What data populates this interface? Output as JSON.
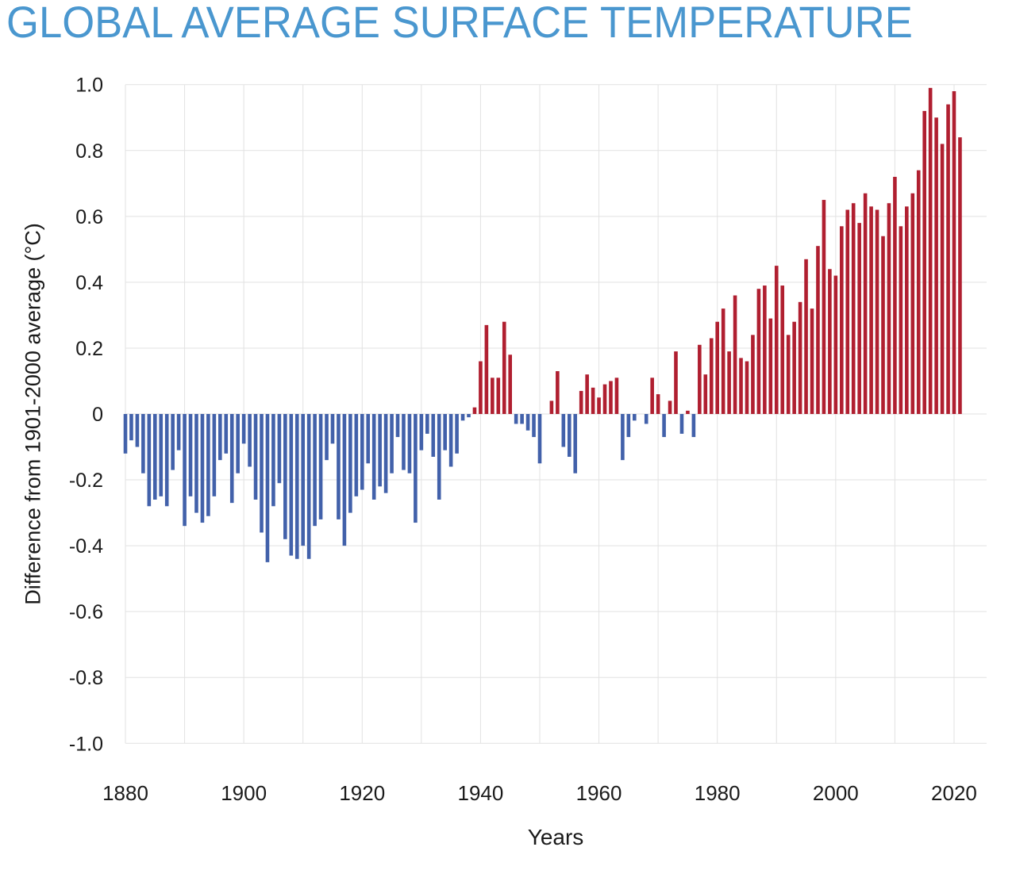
{
  "title": "GLOBAL AVERAGE SURFACE TEMPERATURE",
  "colors": {
    "title_text": "#4a97cf",
    "axis_text": "#1a1a1a",
    "gridline": "#e2e2e2",
    "bar_positive": "#b01f30",
    "bar_negative": "#4261aa",
    "background": "#ffffff"
  },
  "chart_data": {
    "type": "bar",
    "title": "GLOBAL AVERAGE SURFACE TEMPERATURE",
    "xlabel": "Years",
    "ylabel": "Difference from 1901-2000 average (°C)",
    "ylim": [
      -1.0,
      1.0
    ],
    "xlim": [
      1880,
      2025
    ],
    "grid": true,
    "legend": "none",
    "x_grid_step": 10,
    "y_tick_labels": [
      "1.0",
      "0.8",
      "0.6",
      "0.4",
      "0.2",
      "0",
      "-0.2",
      "-0.4",
      "-0.6",
      "-0.8",
      "-1.0"
    ],
    "y_tick_values": [
      1.0,
      0.8,
      0.6,
      0.4,
      0.2,
      0,
      -0.2,
      -0.4,
      -0.6,
      -0.8,
      -1.0
    ],
    "x_tick_labels": [
      "1880",
      "1900",
      "1920",
      "1940",
      "1960",
      "1980",
      "2000",
      "2020"
    ],
    "x_tick_values": [
      1880,
      1900,
      1920,
      1940,
      1960,
      1980,
      2000,
      2020
    ],
    "colors": {
      "positive": "#b01f30",
      "negative": "#4261aa",
      "grid": "#e2e2e2"
    },
    "years": [
      1880,
      1881,
      1882,
      1883,
      1884,
      1885,
      1886,
      1887,
      1888,
      1889,
      1890,
      1891,
      1892,
      1893,
      1894,
      1895,
      1896,
      1897,
      1898,
      1899,
      1900,
      1901,
      1902,
      1903,
      1904,
      1905,
      1906,
      1907,
      1908,
      1909,
      1910,
      1911,
      1912,
      1913,
      1914,
      1915,
      1916,
      1917,
      1918,
      1919,
      1920,
      1921,
      1922,
      1923,
      1924,
      1925,
      1926,
      1927,
      1928,
      1929,
      1930,
      1931,
      1932,
      1933,
      1934,
      1935,
      1936,
      1937,
      1938,
      1939,
      1940,
      1941,
      1942,
      1943,
      1944,
      1945,
      1946,
      1947,
      1948,
      1949,
      1950,
      1951,
      1952,
      1953,
      1954,
      1955,
      1956,
      1957,
      1958,
      1959,
      1960,
      1961,
      1962,
      1963,
      1964,
      1965,
      1966,
      1967,
      1968,
      1969,
      1970,
      1971,
      1972,
      1973,
      1974,
      1975,
      1976,
      1977,
      1978,
      1979,
      1980,
      1981,
      1982,
      1983,
      1984,
      1985,
      1986,
      1987,
      1988,
      1989,
      1990,
      1991,
      1992,
      1993,
      1994,
      1995,
      1996,
      1997,
      1998,
      1999,
      2000,
      2001,
      2002,
      2003,
      2004,
      2005,
      2006,
      2007,
      2008,
      2009,
      2010,
      2011,
      2012,
      2013,
      2014,
      2015,
      2016,
      2017,
      2018,
      2019,
      2020,
      2021
    ],
    "values": [
      -0.12,
      -0.08,
      -0.1,
      -0.18,
      -0.28,
      -0.26,
      -0.25,
      -0.28,
      -0.17,
      -0.11,
      -0.34,
      -0.25,
      -0.3,
      -0.33,
      -0.31,
      -0.25,
      -0.14,
      -0.12,
      -0.27,
      -0.18,
      -0.09,
      -0.16,
      -0.26,
      -0.36,
      -0.45,
      -0.28,
      -0.21,
      -0.38,
      -0.43,
      -0.44,
      -0.4,
      -0.44,
      -0.34,
      -0.32,
      -0.14,
      -0.09,
      -0.32,
      -0.4,
      -0.3,
      -0.25,
      -0.23,
      -0.15,
      -0.26,
      -0.22,
      -0.24,
      -0.18,
      -0.07,
      -0.17,
      -0.18,
      -0.33,
      -0.11,
      -0.06,
      -0.13,
      -0.26,
      -0.11,
      -0.16,
      -0.12,
      -0.02,
      -0.01,
      0.02,
      0.16,
      0.27,
      0.11,
      0.11,
      0.28,
      0.18,
      -0.03,
      -0.03,
      -0.05,
      -0.07,
      -0.15,
      0.0,
      0.04,
      0.13,
      -0.1,
      -0.13,
      -0.18,
      0.07,
      0.12,
      0.08,
      0.05,
      0.09,
      0.1,
      0.11,
      -0.14,
      -0.07,
      -0.02,
      0.0,
      -0.03,
      0.11,
      0.06,
      -0.07,
      0.04,
      0.19,
      -0.06,
      0.01,
      -0.07,
      0.21,
      0.12,
      0.23,
      0.28,
      0.32,
      0.19,
      0.36,
      0.17,
      0.16,
      0.24,
      0.38,
      0.39,
      0.29,
      0.45,
      0.39,
      0.24,
      0.28,
      0.34,
      0.47,
      0.32,
      0.51,
      0.65,
      0.44,
      0.42,
      0.57,
      0.62,
      0.64,
      0.58,
      0.67,
      0.63,
      0.62,
      0.54,
      0.64,
      0.72,
      0.57,
      0.63,
      0.67,
      0.74,
      0.92,
      0.99,
      0.9,
      0.82,
      0.94,
      0.98,
      0.84
    ]
  }
}
